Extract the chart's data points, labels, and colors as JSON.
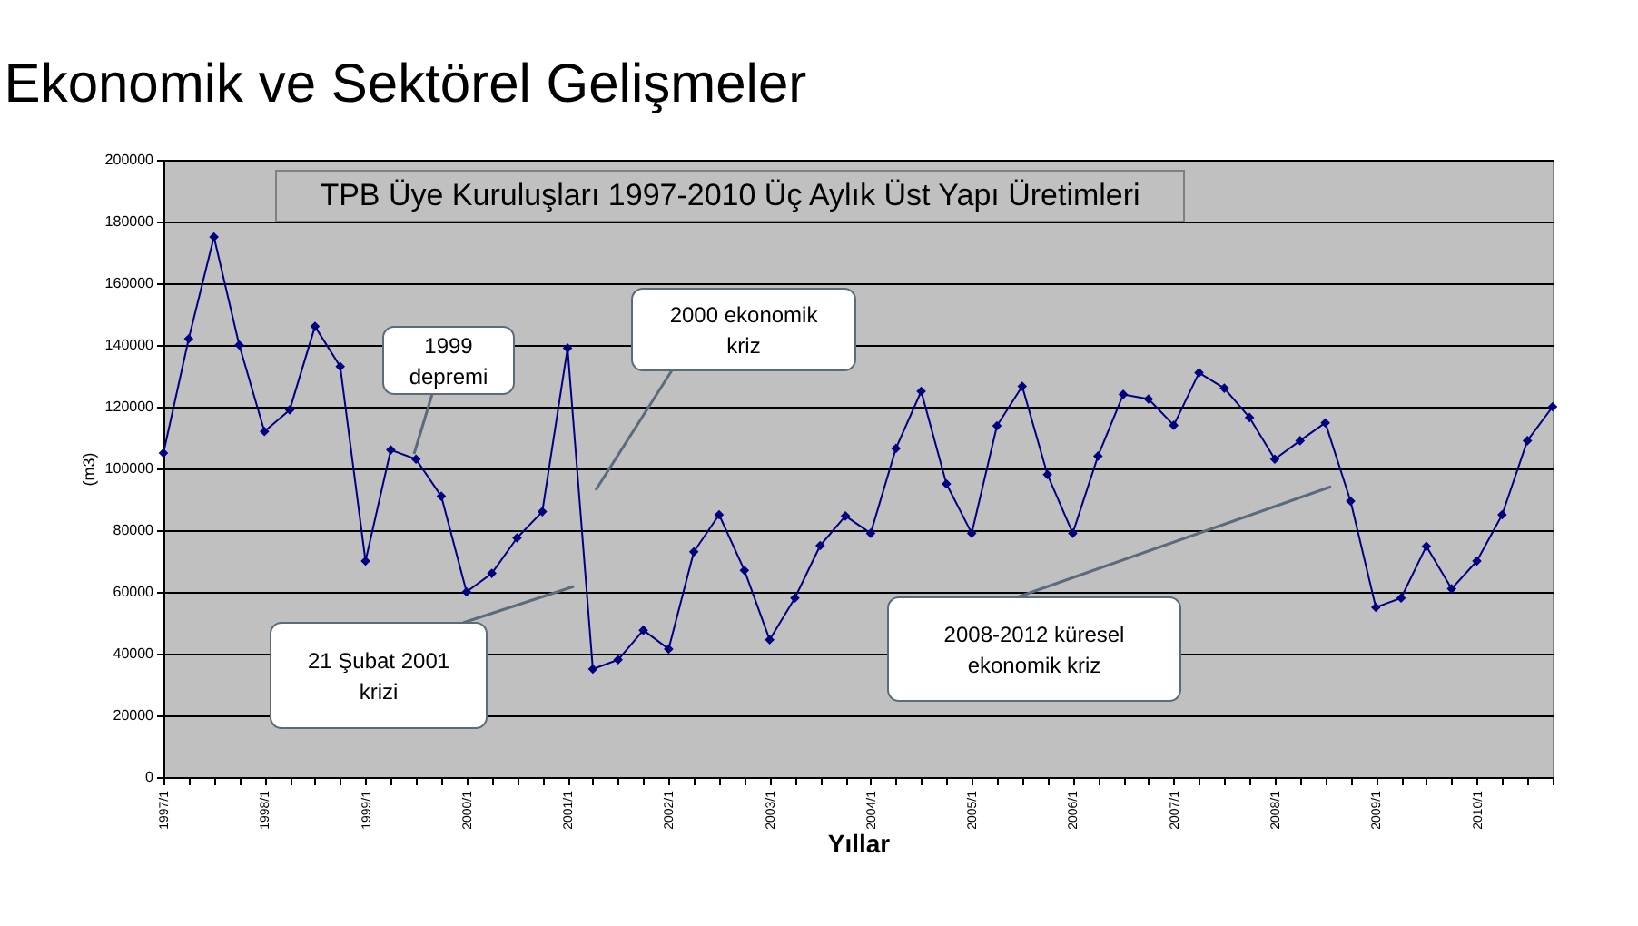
{
  "chart_data": {
    "type": "line",
    "title": "Ekonomik ve Sektörel Gelişmeler",
    "subtitle": "TPB Üye Kuruluşları 1997-2010 Üç Aylık Üst Yapı Üretimleri",
    "xlabel": "Yıllar",
    "ylabel": "(m3)",
    "categories": [
      "1997/1",
      null,
      null,
      null,
      "1998/1",
      null,
      null,
      null,
      "1999/1",
      null,
      null,
      null,
      "2000/1",
      null,
      null,
      null,
      "2001/1",
      null,
      null,
      null,
      "2002/1",
      null,
      null,
      null,
      "2003/1",
      null,
      null,
      null,
      "2004/1",
      null,
      null,
      null,
      "2005/1",
      null,
      null,
      null,
      "2006/1",
      null,
      null,
      null,
      "2007/1",
      null,
      null,
      null,
      "2008/1",
      null,
      null,
      null,
      "2009/1",
      null,
      null,
      null,
      "2010/1",
      null,
      null,
      null
    ],
    "series": [
      {
        "color": "#000080",
        "values": [
          105000,
          142000,
          175000,
          140000,
          112000,
          119000,
          146000,
          133000,
          70000,
          106000,
          103000,
          91000,
          60000,
          66000,
          77500,
          86000,
          139000,
          35000,
          38000,
          47600,
          41500,
          73000,
          85000,
          67000,
          44500,
          58000,
          75000,
          84600,
          79000,
          106500,
          125000,
          95000,
          79000,
          113800,
          126600,
          98000,
          79000,
          104000,
          124000,
          122500,
          114000,
          131000,
          126000,
          116500,
          103000,
          109000,
          114800,
          89400,
          55000,
          58000,
          74800,
          61000,
          70000,
          85000,
          109000,
          120000
        ]
      }
    ],
    "ylim": [
      0,
      200000
    ],
    "yticks": [
      0,
      20000,
      40000,
      60000,
      80000,
      100000,
      120000,
      140000,
      160000,
      180000,
      200000
    ],
    "grid": "y",
    "marker": "diamond",
    "annotations": [
      "1999\ndepremi",
      "2000 ekonomik\nkriz",
      "21 Şubat 2001\nkrizi",
      "2008-2012  küresel\nekonomik kriz"
    ]
  }
}
